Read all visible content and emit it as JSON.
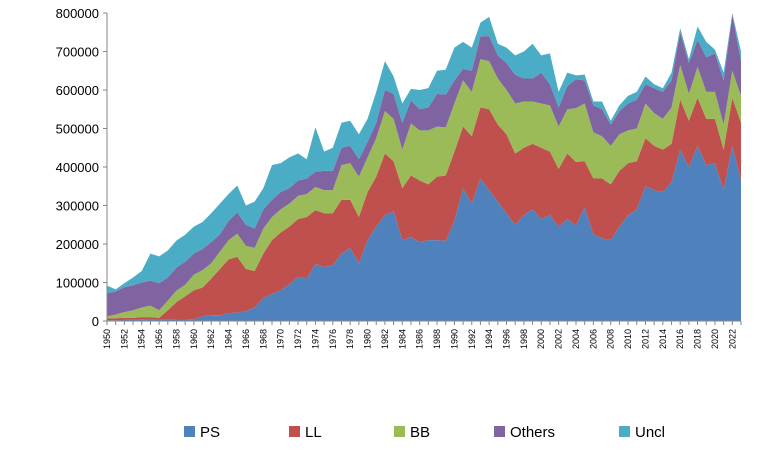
{
  "chart_data": {
    "type": "area",
    "stacked": true,
    "x": [
      1950,
      1951,
      1952,
      1953,
      1954,
      1955,
      1956,
      1957,
      1958,
      1959,
      1960,
      1961,
      1962,
      1963,
      1964,
      1965,
      1966,
      1967,
      1968,
      1969,
      1970,
      1971,
      1972,
      1973,
      1974,
      1975,
      1976,
      1977,
      1978,
      1979,
      1980,
      1981,
      1982,
      1983,
      1984,
      1985,
      1986,
      1987,
      1988,
      1989,
      1990,
      1991,
      1992,
      1993,
      1994,
      1995,
      1996,
      1997,
      1998,
      1999,
      2000,
      2001,
      2002,
      2003,
      2004,
      2005,
      2006,
      2007,
      2008,
      2009,
      2010,
      2011,
      2012,
      2013,
      2014,
      2015,
      2016,
      2017,
      2018,
      2019,
      2020,
      2021,
      2022,
      2023
    ],
    "xtick_labels": [
      "1950",
      "1952",
      "1954",
      "1956",
      "1958",
      "1960",
      "1962",
      "1964",
      "1966",
      "1968",
      "1970",
      "1972",
      "1974",
      "1976",
      "1978",
      "1980",
      "1982",
      "1984",
      "1986",
      "1988",
      "1990",
      "1992",
      "1994",
      "1996",
      "1998",
      "2000",
      "2002",
      "2004",
      "2006",
      "2008",
      "2010",
      "2012",
      "2014",
      "2016",
      "2018",
      "2020",
      "2022"
    ],
    "ylim": [
      0,
      800000
    ],
    "ytick_labels": [
      "0",
      "100000",
      "200000",
      "300000",
      "400000",
      "500000",
      "600000",
      "700000",
      "800000"
    ],
    "series": [
      {
        "name": "PS",
        "color": "#4f81bd",
        "values": [
          2000,
          2000,
          3000,
          3000,
          5000,
          3000,
          3000,
          3000,
          4000,
          4000,
          5000,
          12000,
          15000,
          15000,
          20000,
          22000,
          25000,
          35000,
          60000,
          70000,
          80000,
          95000,
          115000,
          110000,
          148000,
          140000,
          145000,
          175000,
          190000,
          150000,
          210000,
          245000,
          275000,
          285000,
          210000,
          218000,
          205000,
          210000,
          210000,
          208000,
          260000,
          345000,
          305000,
          370000,
          340000,
          310000,
          280000,
          250000,
          275000,
          290000,
          265000,
          275000,
          245000,
          265000,
          248000,
          295000,
          225000,
          215000,
          210000,
          245000,
          275000,
          290000,
          350000,
          340000,
          335000,
          360000,
          445000,
          400000,
          455000,
          405000,
          410000,
          340000,
          455000,
          365000
        ]
      },
      {
        "name": "LL",
        "color": "#c0504d",
        "values": [
          5000,
          5000,
          5000,
          5000,
          5000,
          7000,
          5000,
          25000,
          45000,
          60000,
          75000,
          75000,
          95000,
          120000,
          140000,
          145000,
          110000,
          95000,
          115000,
          140000,
          150000,
          150000,
          150000,
          160000,
          140000,
          140000,
          135000,
          140000,
          125000,
          120000,
          125000,
          130000,
          160000,
          130000,
          135000,
          160000,
          160000,
          145000,
          165000,
          170000,
          180000,
          160000,
          175000,
          185000,
          210000,
          200000,
          205000,
          185000,
          175000,
          170000,
          185000,
          165000,
          150000,
          170000,
          165000,
          120000,
          145000,
          155000,
          145000,
          145000,
          135000,
          125000,
          125000,
          115000,
          110000,
          100000,
          130000,
          120000,
          125000,
          120000,
          115000,
          105000,
          125000,
          150000
        ]
      },
      {
        "name": "BB",
        "color": "#9bbb59",
        "values": [
          5000,
          10000,
          15000,
          20000,
          25000,
          30000,
          20000,
          25000,
          30000,
          30000,
          40000,
          45000,
          40000,
          45000,
          50000,
          60000,
          60000,
          60000,
          65000,
          60000,
          60000,
          60000,
          60000,
          60000,
          60000,
          60000,
          60000,
          90000,
          95000,
          105000,
          90000,
          100000,
          110000,
          110000,
          100000,
          135000,
          130000,
          140000,
          130000,
          125000,
          125000,
          120000,
          115000,
          125000,
          125000,
          120000,
          115000,
          130000,
          120000,
          110000,
          115000,
          120000,
          110000,
          115000,
          140000,
          150000,
          120000,
          110000,
          100000,
          95000,
          85000,
          85000,
          90000,
          85000,
          80000,
          95000,
          90000,
          70000,
          80000,
          70000,
          70000,
          65000,
          70000,
          70000
        ]
      },
      {
        "name": "Others",
        "color": "#8064a2",
        "values": [
          60000,
          60000,
          65000,
          65000,
          65000,
          65000,
          70000,
          60000,
          60000,
          60000,
          55000,
          55000,
          55000,
          45000,
          50000,
          55000,
          55000,
          50000,
          50000,
          45000,
          45000,
          40000,
          40000,
          40000,
          40000,
          50000,
          50000,
          45000,
          45000,
          45000,
          40000,
          40000,
          55000,
          65000,
          70000,
          60000,
          55000,
          60000,
          85000,
          85000,
          60000,
          30000,
          55000,
          60000,
          65000,
          60000,
          70000,
          75000,
          60000,
          60000,
          80000,
          55000,
          50000,
          60000,
          75000,
          60000,
          70000,
          70000,
          55000,
          60000,
          70000,
          75000,
          50000,
          65000,
          70000,
          70000,
          85000,
          80000,
          70000,
          90000,
          100000,
          115000,
          145000,
          90000
        ]
      },
      {
        "name": "Uncl",
        "color": "#4bacc6",
        "values": [
          20000,
          5000,
          10000,
          20000,
          30000,
          70000,
          70000,
          70000,
          70000,
          70000,
          70000,
          70000,
          75000,
          80000,
          70000,
          70000,
          50000,
          70000,
          55000,
          90000,
          75000,
          80000,
          70000,
          50000,
          115000,
          50000,
          60000,
          65000,
          65000,
          65000,
          60000,
          80000,
          75000,
          45000,
          50000,
          30000,
          50000,
          50000,
          60000,
          65000,
          85000,
          70000,
          60000,
          35000,
          50000,
          30000,
          40000,
          50000,
          70000,
          90000,
          45000,
          80000,
          40000,
          35000,
          10000,
          15000,
          10000,
          20000,
          10000,
          15000,
          20000,
          20000,
          20000,
          10000,
          10000,
          20000,
          10000,
          10000,
          35000,
          40000,
          10000,
          20000,
          5000,
          25000
        ]
      }
    ]
  }
}
